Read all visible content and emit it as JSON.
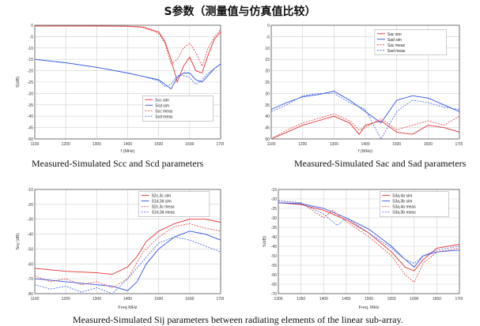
{
  "page": {
    "title": "S参数（测量值与仿真值比较）",
    "caption_top_left": "Measured-Simulated Scc and Scd parameters",
    "caption_top_right": "Measured-Simulated Sac and Sad parameters",
    "caption_bottom": "Measured-Simulated Sij parameters between radiating elements of the linear sub-array."
  },
  "chart_data": [
    {
      "type": "line",
      "xlabel": "f (MHz)",
      "ylabel": "S(dB)",
      "xlim": [
        1100,
        1700
      ],
      "ylim": [
        -50,
        0
      ],
      "xticks": [
        "1100",
        "1200",
        "1300",
        "1400",
        "1500",
        "1600",
        "1700"
      ],
      "yticks": [
        "0",
        "-5",
        "-10",
        "-15",
        "-20",
        "-25",
        "-30",
        "-35",
        "-40",
        "-45",
        "-50"
      ],
      "legend_position": "bottom-right",
      "series": [
        {
          "name": "Scc sim",
          "color": "#e03030",
          "dash": "solid",
          "x": [
            1100,
            1200,
            1300,
            1400,
            1450,
            1500,
            1520,
            1540,
            1560,
            1580,
            1600,
            1620,
            1640,
            1660,
            1680,
            1700
          ],
          "y": [
            -0.3,
            -0.3,
            -0.3,
            -0.4,
            -0.8,
            -3,
            -7,
            -15,
            -25,
            -18,
            -14,
            -20,
            -21,
            -13,
            -6,
            -3
          ]
        },
        {
          "name": "Scd sim",
          "color": "#3050e0",
          "dash": "solid",
          "x": [
            1100,
            1200,
            1300,
            1400,
            1450,
            1500,
            1520,
            1540,
            1560,
            1580,
            1600,
            1620,
            1640,
            1660,
            1680,
            1700
          ],
          "y": [
            -15,
            -16.5,
            -18.5,
            -21,
            -22.5,
            -24,
            -26,
            -28,
            -23,
            -21,
            -21,
            -24,
            -25,
            -22,
            -19,
            -17
          ]
        },
        {
          "name": "Scc meas",
          "color": "#e05050",
          "dash": "dash",
          "x": [
            1100,
            1200,
            1300,
            1400,
            1450,
            1500,
            1520,
            1540,
            1560,
            1580,
            1600,
            1620,
            1640,
            1660,
            1680,
            1700
          ],
          "y": [
            -0.3,
            -0.3,
            -0.4,
            -0.5,
            -1,
            -3.5,
            -8,
            -17,
            -15,
            -10,
            -8,
            -12,
            -18,
            -10,
            -5,
            -2
          ]
        },
        {
          "name": "Scd meas",
          "color": "#5070e0",
          "dash": "dash",
          "x": [
            1100,
            1200,
            1300,
            1400,
            1450,
            1500,
            1520,
            1540,
            1560,
            1580,
            1600,
            1620,
            1640,
            1660,
            1680,
            1700
          ],
          "y": [
            -15,
            -16.5,
            -18.5,
            -21,
            -22.5,
            -24.5,
            -27,
            -26,
            -22,
            -22,
            -23,
            -26,
            -24,
            -21,
            -19,
            -17
          ]
        }
      ]
    },
    {
      "type": "line",
      "xlabel": "f (MHz)",
      "ylabel": "",
      "xlim": [
        1100,
        1700
      ],
      "ylim": [
        -50,
        0
      ],
      "xticks": [
        "1100",
        "1200",
        "1300",
        "1400",
        "1500",
        "1600",
        "1700"
      ],
      "yticks": [
        "0",
        "-5",
        "-10",
        "-15",
        "-20",
        "-25",
        "-30",
        "-35",
        "-40",
        "-45",
        "-50"
      ],
      "legend_position": "top-right",
      "series": [
        {
          "name": "Sac sim",
          "color": "#e03030",
          "dash": "solid",
          "x": [
            1100,
            1150,
            1200,
            1250,
            1300,
            1350,
            1380,
            1400,
            1450,
            1500,
            1550,
            1600,
            1650,
            1700
          ],
          "y": [
            -50,
            -47,
            -44,
            -42,
            -40,
            -43,
            -48,
            -44,
            -42,
            -47,
            -48,
            -44,
            -45,
            -47
          ]
        },
        {
          "name": "Sad sim",
          "color": "#3050e0",
          "dash": "solid",
          "x": [
            1100,
            1150,
            1200,
            1250,
            1300,
            1350,
            1400,
            1450,
            1500,
            1550,
            1600,
            1650,
            1700
          ],
          "y": [
            -37,
            -34,
            -31.5,
            -30.5,
            -29,
            -33,
            -38,
            -43,
            -33,
            -31,
            -32,
            -35,
            -38
          ]
        },
        {
          "name": "Sac meas",
          "color": "#e05050",
          "dash": "dash",
          "x": [
            1100,
            1150,
            1200,
            1250,
            1300,
            1350,
            1380,
            1400,
            1450,
            1500,
            1550,
            1600,
            1650,
            1700
          ],
          "y": [
            -50,
            -46,
            -43,
            -41,
            -39,
            -42,
            -46,
            -45,
            -41,
            -46,
            -44,
            -42,
            -44,
            -40
          ]
        },
        {
          "name": "Sad meas",
          "color": "#5070e0",
          "dash": "dash",
          "x": [
            1100,
            1150,
            1200,
            1250,
            1300,
            1350,
            1400,
            1450,
            1500,
            1550,
            1600,
            1650,
            1700
          ],
          "y": [
            -38,
            -35,
            -31,
            -30,
            -30,
            -34,
            -37,
            -50,
            -38,
            -33,
            -34,
            -36,
            -37
          ]
        }
      ]
    },
    {
      "type": "line",
      "xlabel": "Freq MHz",
      "ylabel": "Sxy (dB)",
      "xlim": [
        1100,
        1700
      ],
      "ylim": [
        -80,
        -10
      ],
      "xticks": [
        "1100",
        "1200",
        "1300",
        "1400",
        "1500",
        "1600",
        "1700"
      ],
      "yticks": [
        "-10",
        "-20",
        "-30",
        "-40",
        "-50",
        "-60",
        "-70",
        "-80"
      ],
      "legend_position": "top-right",
      "series": [
        {
          "name": "S2c,3c sim",
          "color": "#e03030",
          "dash": "solid",
          "x": [
            1100,
            1200,
            1300,
            1350,
            1400,
            1430,
            1460,
            1500,
            1550,
            1600,
            1650,
            1700
          ],
          "y": [
            -63,
            -65,
            -66,
            -67,
            -62,
            -55,
            -45,
            -38,
            -33,
            -30,
            -30,
            -32
          ]
        },
        {
          "name": "S1d,3d sim",
          "color": "#3050e0",
          "dash": "solid",
          "x": [
            1100,
            1200,
            1300,
            1350,
            1400,
            1430,
            1460,
            1500,
            1550,
            1600,
            1650,
            1700
          ],
          "y": [
            -70,
            -72,
            -74,
            -75,
            -78,
            -72,
            -60,
            -50,
            -42,
            -38,
            -40,
            -44
          ]
        },
        {
          "name": "S2c,3c meas",
          "color": "#e05050",
          "dash": "dash",
          "x": [
            1100,
            1150,
            1200,
            1250,
            1300,
            1350,
            1400,
            1450,
            1500,
            1550,
            1600,
            1650,
            1700
          ],
          "y": [
            -68,
            -72,
            -70,
            -74,
            -72,
            -76,
            -70,
            -52,
            -42,
            -35,
            -33,
            -36,
            -38
          ]
        },
        {
          "name": "S1d,3d meas",
          "color": "#5070e0",
          "dash": "dash",
          "x": [
            1100,
            1150,
            1200,
            1250,
            1300,
            1350,
            1400,
            1450,
            1500,
            1550,
            1600,
            1650,
            1700
          ],
          "y": [
            -74,
            -77,
            -75,
            -79,
            -76,
            -80,
            -70,
            -58,
            -46,
            -42,
            -44,
            -48,
            -52
          ]
        }
      ]
    },
    {
      "type": "line",
      "xlabel": "Freq. MHz",
      "ylabel": "S(dB)",
      "xlim": [
        1300,
        1700
      ],
      "ylim": [
        -70,
        -15
      ],
      "xticks": [
        "1300",
        "1350",
        "1400",
        "1450",
        "1500",
        "1550",
        "1600",
        "1650",
        "1700"
      ],
      "yticks": [
        "-15",
        "-20",
        "-25",
        "-30",
        "-35",
        "-40",
        "-45",
        "-50",
        "-55",
        "-60",
        "-65",
        "-70"
      ],
      "legend_position": "top-right",
      "series": [
        {
          "name": "S3a,4a sim",
          "color": "#e03030",
          "dash": "solid",
          "x": [
            1300,
            1350,
            1400,
            1450,
            1500,
            1550,
            1580,
            1600,
            1620,
            1650,
            1700
          ],
          "y": [
            -22,
            -23,
            -26,
            -31,
            -38,
            -48,
            -56,
            -58,
            -52,
            -46,
            -44
          ]
        },
        {
          "name": "S3a,3b sim",
          "color": "#3050e0",
          "dash": "solid",
          "x": [
            1300,
            1350,
            1400,
            1450,
            1500,
            1550,
            1580,
            1600,
            1620,
            1650,
            1700
          ],
          "y": [
            -22,
            -22.5,
            -25,
            -30,
            -36,
            -45,
            -52,
            -56,
            -50,
            -48,
            -47
          ]
        },
        {
          "name": "S3a,4a meas",
          "color": "#e05050",
          "dash": "dash",
          "x": [
            1300,
            1350,
            1400,
            1420,
            1450,
            1500,
            1550,
            1580,
            1600,
            1620,
            1650,
            1700
          ],
          "y": [
            -21,
            -22,
            -30,
            -26,
            -32,
            -40,
            -50,
            -60,
            -64,
            -54,
            -48,
            -46
          ]
        },
        {
          "name": "S3a,3b meas",
          "color": "#5070e0",
          "dash": "dash",
          "x": [
            1300,
            1350,
            1400,
            1430,
            1450,
            1500,
            1550,
            1580,
            1600,
            1620,
            1650,
            1700
          ],
          "y": [
            -21,
            -22,
            -28,
            -34,
            -30,
            -38,
            -46,
            -52,
            -54,
            -50,
            -47,
            -45
          ]
        }
      ]
    }
  ]
}
